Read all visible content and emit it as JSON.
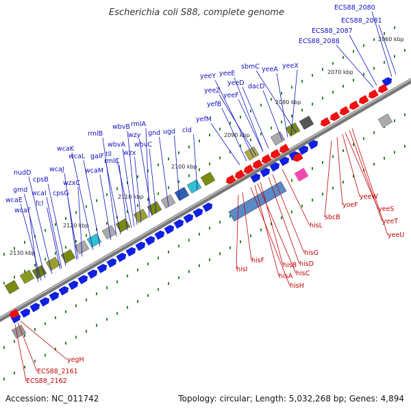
{
  "title": "Escherichia coli S88, complete genome",
  "footer": {
    "accession": "Accession: NC_011742",
    "summary": "Topology: circular; Length: 5,032,268 bp; Genes: 4,894"
  },
  "colors": {
    "forward_strand": "#1020e0",
    "reverse_strand": "#ee1010",
    "backbone": "#888888",
    "label_forward": "#1010c0",
    "label_reverse": "#c00000",
    "dot": "#228822"
  },
  "ticks": [
    {
      "label": "2060 kbp"
    },
    {
      "label": "2070 kbp"
    },
    {
      "label": "2080 kbp"
    },
    {
      "label": "2090 kbp"
    },
    {
      "label": "2100 kbp"
    },
    {
      "label": "2110 kbp"
    },
    {
      "label": "2120 kbp"
    },
    {
      "label": "2130 kbp"
    }
  ],
  "forward_labels": [
    "ECS88_2080",
    "ECS88_2081",
    "ECS88_2087",
    "ECS88_2088",
    "yeeX",
    "yeeA",
    "sbmC",
    "dacD",
    "yeeD",
    "yeeE",
    "yeeY",
    "yeeZ",
    "yeeF",
    "yefB",
    "yefM",
    "cld",
    "ugd",
    "gnd",
    "wbvC",
    "wzy",
    "rmlA",
    "wbvB",
    "wbvA",
    "tll",
    "rmlB",
    "rmlC",
    "galF",
    "wzx",
    "wcaM",
    "wcaL",
    "wcaK",
    "wzxC",
    "wcaJ",
    "cpsG",
    "cpsB",
    "nudD",
    "wcaI",
    "fcl",
    "gmd",
    "wcaE",
    "wcaF"
  ],
  "reverse_labels": [
    "hisL",
    "sbcB",
    "yoeF",
    "yeeW",
    "yeeS",
    "yeeT",
    "yeeU",
    "hisG",
    "hisD",
    "hisB",
    "hisC",
    "hisA",
    "hisH",
    "hisF",
    "hisI",
    "yegH",
    "ECS88_2161",
    "ECS88_2162"
  ]
}
